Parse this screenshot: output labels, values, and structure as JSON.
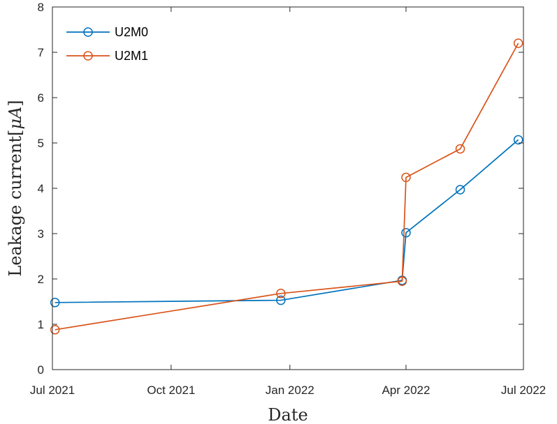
{
  "chart_data": {
    "type": "line",
    "title": "",
    "xlabel": "Date",
    "ylabel": "Leakage current[μA]",
    "ylabel_parts": {
      "text": "Leakage current[",
      "symbol": "μA",
      "close": "]"
    },
    "xlim": [
      "2021-07-01",
      "2022-07-01"
    ],
    "ylim": [
      0,
      8
    ],
    "x_ticks": [
      "2021-07-01",
      "2021-10-01",
      "2022-01-01",
      "2022-04-01",
      "2022-07-01"
    ],
    "x_tick_labels": [
      "Jul 2021",
      "Oct 2021",
      "Jan 2022",
      "Apr 2022",
      "Jul 2022"
    ],
    "y_ticks": [
      0,
      1,
      2,
      3,
      4,
      5,
      6,
      7,
      8
    ],
    "y_tick_labels": [
      "0",
      "1",
      "2",
      "3",
      "4",
      "5",
      "6",
      "7",
      "8"
    ],
    "grid": false,
    "legend": "top-left",
    "series": [
      {
        "name": "U2M0",
        "color": "#0072BD",
        "marker": "circle-open",
        "x": [
          "2021-07-03",
          "2021-12-25",
          "2022-03-29",
          "2022-04-01",
          "2022-05-13",
          "2022-06-27"
        ],
        "y": [
          1.48,
          1.53,
          1.97,
          3.02,
          3.97,
          5.07
        ]
      },
      {
        "name": "U2M1",
        "color": "#D95319",
        "marker": "circle-open",
        "x": [
          "2021-07-03",
          "2021-12-25",
          "2022-03-29",
          "2022-04-01",
          "2022-05-13",
          "2022-06-27"
        ],
        "y": [
          0.88,
          1.68,
          1.95,
          4.24,
          4.87,
          7.2
        ]
      }
    ]
  }
}
